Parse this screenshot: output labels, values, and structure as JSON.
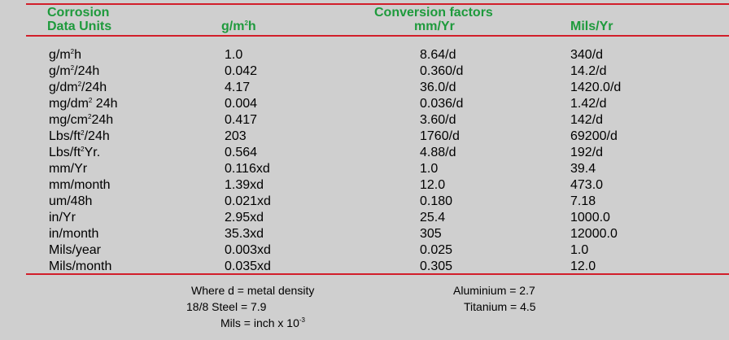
{
  "header": {
    "col1_line1": "Corrosion",
    "col1_line2": "Data Units",
    "col2_base": "g/m",
    "col2_sup": "2",
    "col2_tail": "h",
    "title": "Conversion factors",
    "col3": "mm/Yr",
    "col4": "Mils/Yr"
  },
  "rows": [
    {
      "u": "g/m",
      "s": "2",
      "t": "h",
      "c1": "1.0",
      "c2": "8.64/d",
      "c3": "340/d"
    },
    {
      "u": "g/m",
      "s": "2",
      "t": "/24h",
      "c1": "0.042",
      "c2": "0.360/d",
      "c3": "14.2/d"
    },
    {
      "u": "g/dm",
      "s": "2",
      "t": "/24h",
      "c1": "4.17",
      "c2": "36.0/d",
      "c3": "1420.0/d"
    },
    {
      "u": "mg/dm",
      "s": "2",
      "t": " 24h",
      "c1": "0.004",
      "c2": "0.036/d",
      "c3": "1.42/d"
    },
    {
      "u": "mg/cm",
      "s": "2",
      "t": "24h",
      "c1": "0.417",
      "c2": "3.60/d",
      "c3": "142/d"
    },
    {
      "u": "Lbs/ft",
      "s": "2",
      "t": "/24h",
      "c1": "203",
      "c2": "1760/d",
      "c3": "69200/d"
    },
    {
      "u": "Lbs/ft",
      "s": "2",
      "t": "Yr.",
      "c1": "0.564",
      "c2": "4.88/d",
      "c3": "192/d"
    },
    {
      "u": "mm/Yr",
      "s": "",
      "t": "",
      "c1": "0.116xd",
      "c2": "1.0",
      "c3": "39.4"
    },
    {
      "u": "mm/month",
      "s": "",
      "t": "",
      "c1": "1.39xd",
      "c2": "12.0",
      "c3": "473.0"
    },
    {
      "u": "um/48h",
      "s": "",
      "t": "",
      "c1": "0.021xd",
      "c2": "0.180",
      "c3": "7.18"
    },
    {
      "u": "in/Yr",
      "s": "",
      "t": "",
      "c1": "2.95xd",
      "c2": "25.4",
      "c3": "1000.0"
    },
    {
      "u": "in/month",
      "s": "",
      "t": "",
      "c1": "35.3xd",
      "c2": "305",
      "c3": "12000.0"
    },
    {
      "u": "Mils/year",
      "s": "",
      "t": "",
      "c1": "0.003xd",
      "c2": "0.025",
      "c3": "1.0"
    },
    {
      "u": "Mils/month",
      "s": "",
      "t": "",
      "c1": "0.035xd",
      "c2": "0.305",
      "c3": "12.0"
    }
  ],
  "notes": {
    "density": "Where  d = metal density",
    "steel": "18/8 Steel = 7.9",
    "mils_base": "Mils = inch x 10",
    "mils_exp": "-3",
    "aluminium": "Aluminium = 2.7",
    "titanium": "Titanium = 4.5"
  },
  "colors": {
    "background": "#cfcfcf",
    "header_text": "#1e9a3c",
    "rule": "#d21e2a"
  }
}
